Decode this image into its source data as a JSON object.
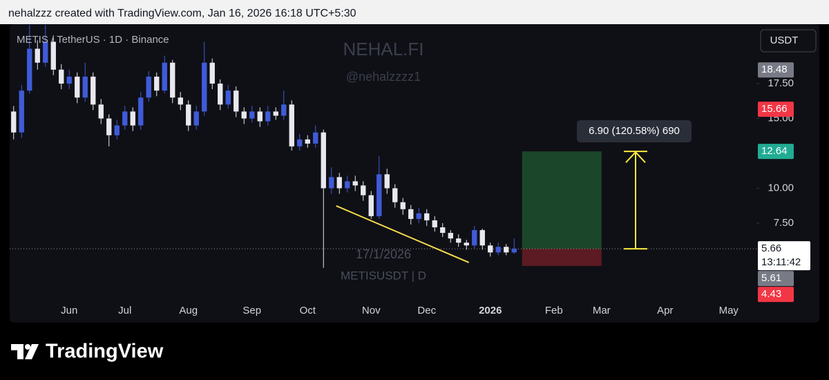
{
  "header": {
    "text": "nehalzzz created with TradingView.com, Jan 16, 2026 16:18 UTC+5:30"
  },
  "chart_data": {
    "type": "candlestick",
    "legend": "METIS / TetherUS · 1D · Binance",
    "currency": "USDT",
    "watermark": [
      "NEHAL.FI",
      "@nehalzzzz1"
    ],
    "date_watermark": "17/1/2026",
    "symbol_watermark": "METISUSDT | D",
    "up_color": "#3f5bd8",
    "down_color": "#e8e8ee",
    "categories": [
      null,
      null,
      null,
      null,
      null,
      null,
      null,
      "Jun",
      null,
      null,
      null,
      null,
      null,
      null,
      "Jul",
      null,
      null,
      null,
      null,
      null,
      null,
      null,
      "Aug",
      null,
      null,
      null,
      null,
      null,
      null,
      null,
      "Sep",
      null,
      null,
      null,
      null,
      null,
      null,
      "Oct",
      null,
      null,
      null,
      null,
      null,
      null,
      null,
      "Nov",
      null,
      null,
      null,
      null,
      null,
      null,
      "Dec",
      null,
      null,
      null,
      null,
      null,
      null,
      null,
      "2026",
      null,
      null,
      null,
      null,
      null,
      null,
      null,
      "Feb",
      null,
      null,
      null,
      null,
      null,
      "Mar",
      null,
      null,
      null,
      null,
      null,
      null,
      null,
      "Apr",
      null,
      null,
      null,
      null,
      null,
      null,
      null,
      "May",
      null,
      null,
      null
    ],
    "open": [
      15.5,
      14,
      17,
      20,
      19,
      20.5,
      18.5,
      17.5,
      18,
      16.5,
      18,
      16,
      15,
      13.8,
      14.5,
      15.5,
      14.5,
      16.5,
      18,
      17,
      19,
      16.5,
      16,
      14.5,
      15.5,
      19,
      17.5,
      16,
      17,
      15.5,
      15,
      15.5,
      14.8,
      15.5,
      15.2,
      16,
      13,
      13.5,
      13.2,
      14,
      10,
      10.8,
      10,
      10.5,
      10.2,
      9.5,
      8,
      11,
      10,
      9,
      8.5,
      7.8,
      8.2,
      7.7,
      7.2,
      6.8,
      6.4,
      6.1,
      5.9,
      7,
      5.9,
      5.4,
      5.8,
      5.4,
      null,
      null,
      null,
      null,
      null,
      null,
      null,
      null,
      null,
      null,
      null,
      null,
      null,
      null,
      null,
      null,
      null,
      null,
      null,
      null,
      null,
      null,
      null,
      null,
      null,
      null,
      null,
      null,
      null,
      null
    ],
    "high": [
      15.9,
      17.4,
      21.7,
      20.6,
      21.7,
      20.8,
      18.9,
      18.5,
      18.3,
      19,
      18.3,
      16.4,
      15.3,
      14.9,
      15.9,
      15.8,
      16.9,
      18.4,
      18.3,
      19.5,
      19.2,
      16.9,
      16.3,
      15.9,
      20.5,
      19.3,
      17.8,
      17.4,
      17.3,
      15.8,
      15.9,
      15.8,
      15.9,
      15.8,
      17,
      16.3,
      13.9,
      13.8,
      14.5,
      14.2,
      11.5,
      11.1,
      10.9,
      10.9,
      10.5,
      9.8,
      12.3,
      11.4,
      10.3,
      9.3,
      8.8,
      8.6,
      8.5,
      8,
      7.5,
      7,
      6.7,
      6.3,
      7.3,
      7.1,
      6.1,
      6.1,
      6,
      6.4,
      null,
      null,
      null,
      null,
      null,
      null,
      null,
      null,
      null,
      null,
      null,
      null,
      null,
      null,
      null,
      null,
      null,
      null,
      null,
      null,
      null,
      null,
      null,
      null,
      null,
      null,
      null,
      null,
      null,
      null
    ],
    "low": [
      13.5,
      13.6,
      16.8,
      18.5,
      18.7,
      18.1,
      17.1,
      17.1,
      16.1,
      16.2,
      15.6,
      14.6,
      13,
      13.5,
      14.2,
      14.1,
      14.2,
      16.2,
      16.6,
      16.8,
      16.1,
      15.6,
      14.1,
      14.2,
      15.2,
      17.1,
      15.6,
      15.7,
      15.1,
      14.6,
      14.7,
      14.4,
      14.5,
      14.9,
      14.9,
      12.7,
      12.7,
      12.9,
      12.9,
      4.3,
      9.6,
      9.6,
      9.7,
      9.8,
      9.1,
      7.8,
      7.8,
      9.6,
      8.6,
      8.1,
      7.4,
      7.5,
      7.3,
      6.9,
      6.5,
      6.1,
      5.8,
      5.6,
      5.7,
      5.6,
      5.1,
      5.2,
      5.2,
      5.3,
      null,
      null,
      null,
      null,
      null,
      null,
      null,
      null,
      null,
      null,
      null,
      null,
      null,
      null,
      null,
      null,
      null,
      null,
      null,
      null,
      null,
      null,
      null,
      null,
      null,
      null,
      null,
      null,
      null,
      null
    ],
    "close": [
      14,
      17,
      20,
      19,
      20.5,
      18.5,
      17.5,
      18,
      16.5,
      18,
      16,
      15,
      13.8,
      14.5,
      15.5,
      14.5,
      16.5,
      18,
      17,
      19,
      16.5,
      16,
      14.5,
      15.5,
      19,
      17.5,
      16,
      17,
      15.5,
      15,
      15.5,
      14.8,
      15.5,
      15.2,
      16,
      13,
      13.5,
      13.2,
      14,
      10,
      10.8,
      10,
      10.5,
      10.2,
      9.5,
      8,
      11,
      10,
      9,
      8.5,
      7.8,
      8.2,
      7.7,
      7.2,
      6.8,
      6.4,
      6.1,
      5.9,
      7,
      5.9,
      5.4,
      5.8,
      5.4,
      5.66,
      null,
      null,
      null,
      null,
      null,
      null,
      null,
      null,
      null,
      null,
      null,
      null,
      null,
      null,
      null,
      null,
      null,
      null,
      null,
      null,
      null,
      null,
      null,
      null,
      null,
      null,
      null,
      null,
      null,
      null
    ],
    "ylim": [
      2.1,
      21.76
    ],
    "yticks": [
      {
        "value": 7.5,
        "label": "7.50"
      },
      {
        "value": 10,
        "label": "10.00"
      },
      {
        "value": 15,
        "label": "15.00"
      },
      {
        "value": 17.5,
        "label": "17.50"
      }
    ],
    "price_labels": [
      {
        "value": 18.48,
        "color": "#787b86",
        "text_color": "#ffffff"
      },
      {
        "value": 15.66,
        "color": "#f23645",
        "text_color": "#ffffff"
      },
      {
        "value": 12.64,
        "color": "#22ab94",
        "text_color": "#ffffff"
      },
      {
        "value": 5.66,
        "countdown": "13:11:42",
        "color": "#ffffff",
        "text_color": "#131722"
      },
      {
        "value": 5.61,
        "color": "#787b86",
        "text_color": "#ffffff"
      },
      {
        "value": 4.43,
        "color": "#f23645",
        "text_color": "#ffffff"
      }
    ],
    "position": {
      "target": 12.64,
      "entry": 5.66,
      "stop": 4.43,
      "x": [
        64,
        74
      ]
    },
    "measure_label": "6.90 (120.58%) 690",
    "trendline": {
      "x": [
        40.6,
        57.3
      ],
      "y": [
        8.74,
        4.68
      ]
    }
  },
  "footer": {
    "brand": "TradingView"
  }
}
